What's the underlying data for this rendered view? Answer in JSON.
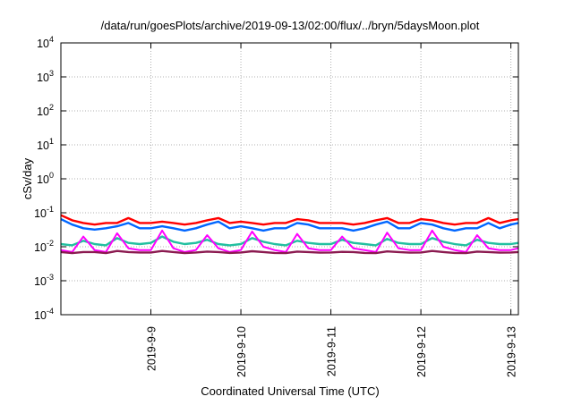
{
  "chart_data": {
    "type": "line",
    "title": "/data/run/goesPlots/archive/2019-09-13/02:00/flux/../bryn/5daysMoon.plot",
    "xlabel": "Coordinated Universal Time (UTC)",
    "ylabel": "cSv/day",
    "yscale": "log",
    "ylim": [
      0.0001,
      10000
    ],
    "xlim": [
      "2019-09-08T00:00",
      "2019-09-13T02:00"
    ],
    "yticks": [
      {
        "value": 0.0001,
        "base": "10",
        "exp": "-4"
      },
      {
        "value": 0.001,
        "base": "10",
        "exp": "-3"
      },
      {
        "value": 0.01,
        "base": "10",
        "exp": "-2"
      },
      {
        "value": 0.1,
        "base": "10",
        "exp": "-1"
      },
      {
        "value": 1,
        "base": "10",
        "exp": "0"
      },
      {
        "value": 10,
        "base": "10",
        "exp": "1"
      },
      {
        "value": 100,
        "base": "10",
        "exp": "2"
      },
      {
        "value": 1000,
        "base": "10",
        "exp": "3"
      },
      {
        "value": 10000,
        "base": "10",
        "exp": "4"
      }
    ],
    "xticks": [
      {
        "value": "2019-09-09T00:00",
        "label": "2019-9-9"
      },
      {
        "value": "2019-09-10T00:00",
        "label": "2019-9-10"
      },
      {
        "value": "2019-09-11T00:00",
        "label": "2019-9-11"
      },
      {
        "value": "2019-09-12T00:00",
        "label": "2019-9-12"
      },
      {
        "value": "2019-09-13T00:00",
        "label": "2019-9-13"
      }
    ],
    "grid": true,
    "legend": "none",
    "x": [
      "2019-09-08T00:00",
      "2019-09-08T03:00",
      "2019-09-08T06:00",
      "2019-09-08T09:00",
      "2019-09-08T12:00",
      "2019-09-08T15:00",
      "2019-09-08T18:00",
      "2019-09-08T21:00",
      "2019-09-09T00:00",
      "2019-09-09T03:00",
      "2019-09-09T06:00",
      "2019-09-09T09:00",
      "2019-09-09T12:00",
      "2019-09-09T15:00",
      "2019-09-09T18:00",
      "2019-09-09T21:00",
      "2019-09-10T00:00",
      "2019-09-10T03:00",
      "2019-09-10T06:00",
      "2019-09-10T09:00",
      "2019-09-10T12:00",
      "2019-09-10T15:00",
      "2019-09-10T18:00",
      "2019-09-10T21:00",
      "2019-09-11T00:00",
      "2019-09-11T03:00",
      "2019-09-11T06:00",
      "2019-09-11T09:00",
      "2019-09-11T12:00",
      "2019-09-11T15:00",
      "2019-09-11T18:00",
      "2019-09-11T21:00",
      "2019-09-12T00:00",
      "2019-09-12T03:00",
      "2019-09-12T06:00",
      "2019-09-12T09:00",
      "2019-09-12T12:00",
      "2019-09-12T15:00",
      "2019-09-12T18:00",
      "2019-09-12T21:00",
      "2019-09-13T00:00",
      "2019-09-13T02:00"
    ],
    "series": [
      {
        "color": "#ff0000",
        "values": [
          0.085,
          0.06,
          0.05,
          0.045,
          0.05,
          0.05,
          0.07,
          0.05,
          0.05,
          0.055,
          0.05,
          0.045,
          0.05,
          0.06,
          0.07,
          0.05,
          0.055,
          0.05,
          0.045,
          0.05,
          0.05,
          0.065,
          0.06,
          0.05,
          0.05,
          0.05,
          0.045,
          0.05,
          0.06,
          0.07,
          0.05,
          0.05,
          0.065,
          0.06,
          0.05,
          0.045,
          0.05,
          0.05,
          0.07,
          0.05,
          0.06,
          0.065
        ]
      },
      {
        "color": "#0066ff",
        "values": [
          0.065,
          0.045,
          0.035,
          0.032,
          0.035,
          0.04,
          0.05,
          0.035,
          0.035,
          0.04,
          0.035,
          0.03,
          0.035,
          0.045,
          0.055,
          0.035,
          0.04,
          0.035,
          0.03,
          0.035,
          0.035,
          0.05,
          0.045,
          0.035,
          0.035,
          0.035,
          0.03,
          0.035,
          0.045,
          0.055,
          0.035,
          0.035,
          0.05,
          0.045,
          0.035,
          0.03,
          0.035,
          0.035,
          0.05,
          0.035,
          0.045,
          0.05
        ]
      },
      {
        "color": "#22c0a0",
        "values": [
          0.012,
          0.011,
          0.015,
          0.012,
          0.011,
          0.018,
          0.013,
          0.012,
          0.013,
          0.02,
          0.014,
          0.012,
          0.013,
          0.016,
          0.012,
          0.011,
          0.012,
          0.018,
          0.014,
          0.012,
          0.011,
          0.015,
          0.013,
          0.012,
          0.012,
          0.016,
          0.013,
          0.012,
          0.011,
          0.017,
          0.013,
          0.012,
          0.012,
          0.018,
          0.014,
          0.012,
          0.011,
          0.016,
          0.013,
          0.012,
          0.012,
          0.013
        ]
      },
      {
        "color": "#ff00ff",
        "values": [
          0.008,
          0.007,
          0.02,
          0.008,
          0.007,
          0.025,
          0.009,
          0.008,
          0.008,
          0.03,
          0.009,
          0.007,
          0.008,
          0.022,
          0.009,
          0.007,
          0.008,
          0.028,
          0.01,
          0.008,
          0.007,
          0.024,
          0.009,
          0.008,
          0.008,
          0.02,
          0.009,
          0.008,
          0.007,
          0.026,
          0.009,
          0.008,
          0.008,
          0.03,
          0.01,
          0.008,
          0.007,
          0.022,
          0.009,
          0.008,
          0.008,
          0.009
        ]
      },
      {
        "color": "#8b1a50",
        "values": [
          0.007,
          0.0065,
          0.007,
          0.007,
          0.0065,
          0.0075,
          0.007,
          0.0068,
          0.0068,
          0.0075,
          0.007,
          0.0065,
          0.0068,
          0.0072,
          0.007,
          0.0066,
          0.0068,
          0.0074,
          0.007,
          0.0066,
          0.0065,
          0.0072,
          0.007,
          0.0067,
          0.0068,
          0.0071,
          0.007,
          0.0066,
          0.0065,
          0.0073,
          0.007,
          0.0067,
          0.0068,
          0.0075,
          0.007,
          0.0066,
          0.0065,
          0.0072,
          0.007,
          0.0067,
          0.0068,
          0.007
        ]
      }
    ]
  }
}
